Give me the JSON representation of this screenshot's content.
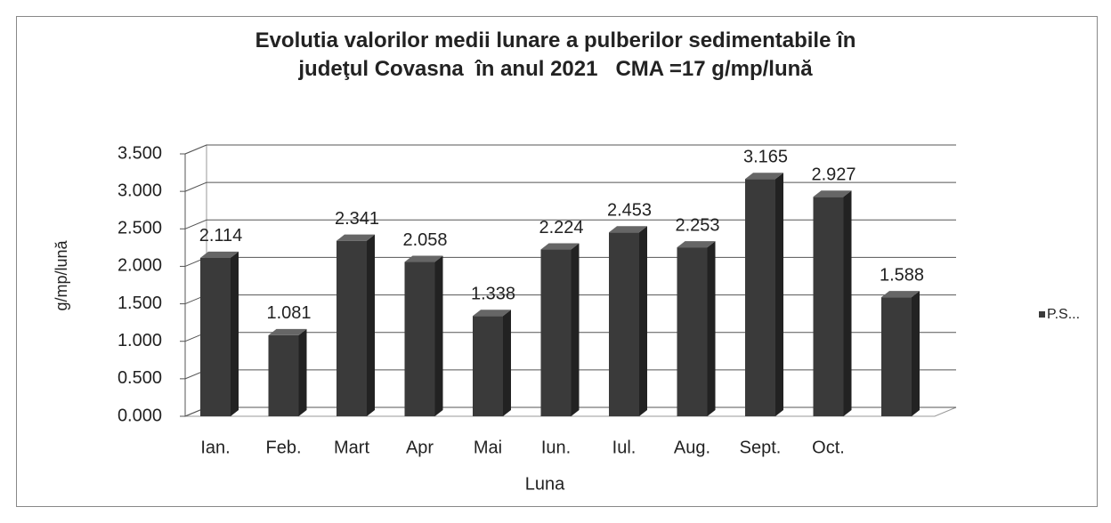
{
  "chart_data": {
    "type": "bar3d",
    "title": "Evolutia valorilor medii lunare a pulberilor sedimentabile în\njudeţul Covasna  în anul 2021   CMA =17 g/mp/lună",
    "x_label": "Luna",
    "y_label": "g/mp/lună",
    "categories": [
      "Ian.",
      "Feb.",
      "Mart",
      "Apr",
      "Mai",
      "Iun.",
      "Iul.",
      "Aug.",
      "Sept.",
      "Oct.",
      null
    ],
    "series": [
      {
        "name": "P.S...",
        "color": "#3a3a3a",
        "values": [
          2.114,
          1.081,
          2.341,
          2.058,
          1.338,
          2.224,
          2.453,
          2.253,
          3.165,
          2.927,
          1.588
        ]
      }
    ],
    "ylim": [
      0,
      3.5
    ],
    "yticks": [
      {
        "value": 0,
        "label": "0.000"
      },
      {
        "value": 0.5,
        "label": "0.500"
      },
      {
        "value": 1,
        "label": "1.000"
      },
      {
        "value": 1.5,
        "label": "1.500"
      },
      {
        "value": 2,
        "label": "2.000"
      },
      {
        "value": 2.5,
        "label": "2.500"
      },
      {
        "value": 3,
        "label": "3.000"
      },
      {
        "value": 3.5,
        "label": "3.500"
      }
    ],
    "grid": true,
    "legend": "right"
  }
}
